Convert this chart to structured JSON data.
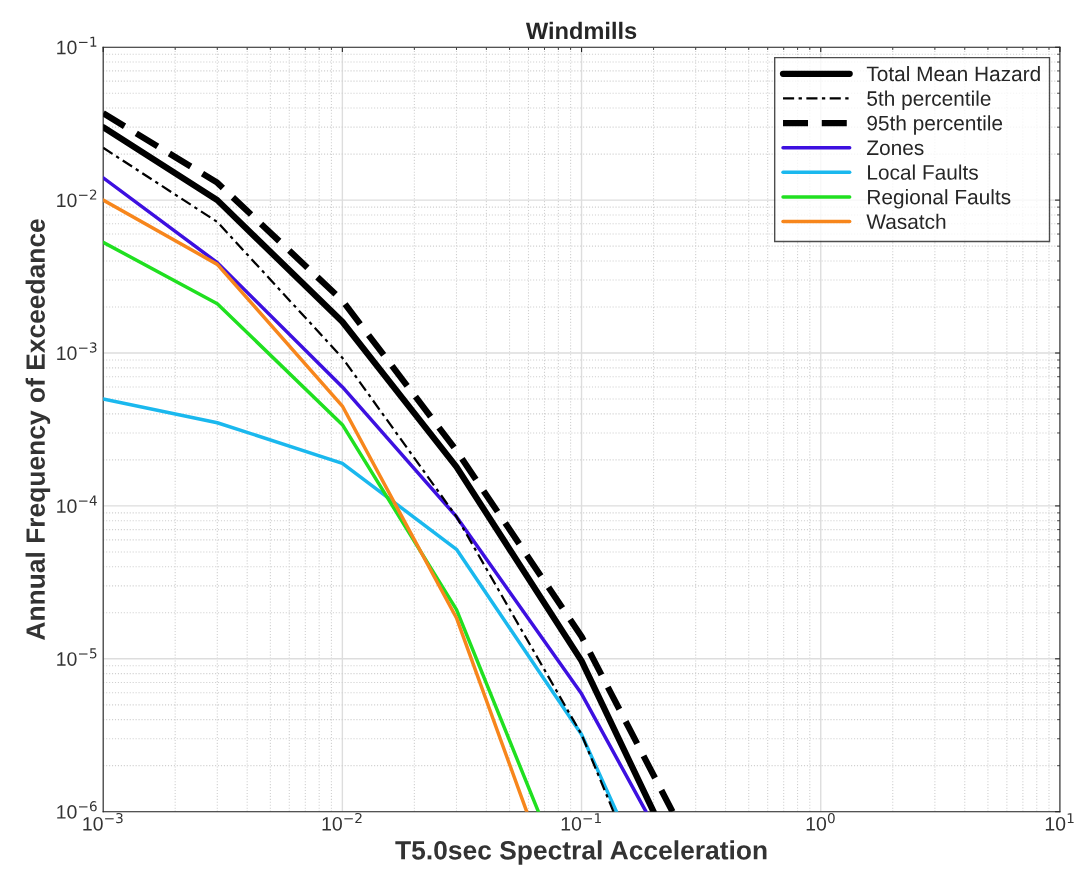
{
  "chart_data": {
    "type": "line",
    "title": "Windmills",
    "xlabel": "T5.0sec Spectral Acceleration",
    "ylabel": "Annual Frequency of Exceedance",
    "log": "xy",
    "grid": true,
    "legend": "top right",
    "xlim": [
      0.001,
      10
    ],
    "ylim": [
      1e-06,
      0.1
    ],
    "xticks": [
      {
        "value": 0.001,
        "label": "10$^{−3}$"
      },
      {
        "value": 0.01,
        "label": "10$^{−2}$"
      },
      {
        "value": 0.1,
        "label": "10$^{−1}$"
      },
      {
        "value": 1,
        "label": "10$^{0}$"
      },
      {
        "value": 10,
        "label": "10$^{1}$"
      }
    ],
    "yticks": [
      {
        "value": 1e-06,
        "label": "10$^{−6}$"
      },
      {
        "value": 1e-05,
        "label": "10$^{−5}$"
      },
      {
        "value": 0.0001,
        "label": "10$^{−4}$"
      },
      {
        "value": 0.001,
        "label": "10$^{−3}$"
      },
      {
        "value": 0.01,
        "label": "10$^{−2}$"
      },
      {
        "value": 0.1,
        "label": "10$^{−1}$"
      }
    ],
    "series": [
      {
        "name": "Total Mean Hazard",
        "color": "#000000",
        "line_style": "solid",
        "x": [
          0.001,
          0.003,
          0.01,
          0.03,
          0.1,
          0.2
        ],
        "values": [
          0.03,
          0.01,
          0.0016,
          0.00018,
          9.7e-06,
          1e-06
        ]
      },
      {
        "name": "5th percentile",
        "color": "#000000",
        "line_style": "dashdot",
        "x": [
          0.001,
          0.003,
          0.01,
          0.03,
          0.1,
          0.136
        ],
        "values": [
          0.022,
          0.0072,
          0.00093,
          8.5e-05,
          3.2e-06,
          1e-06
        ]
      },
      {
        "name": "95th percentile",
        "color": "#000000",
        "line_style": "dashed",
        "x": [
          0.001,
          0.003,
          0.01,
          0.03,
          0.1,
          0.24
        ],
        "values": [
          0.037,
          0.013,
          0.0022,
          0.00023,
          1.4e-05,
          1e-06
        ]
      },
      {
        "name": "Zones",
        "color": "#3d10e0",
        "line_style": "solid",
        "x": [
          0.001,
          0.003,
          0.01,
          0.03,
          0.1,
          0.186
        ],
        "values": [
          0.014,
          0.0039,
          0.0006,
          8.5e-05,
          5.9e-06,
          1e-06
        ]
      },
      {
        "name": "Local Faults",
        "color": "#1ab8ee",
        "line_style": "solid",
        "x": [
          0.001,
          0.003,
          0.01,
          0.03,
          0.1,
          0.14
        ],
        "values": [
          0.0005,
          0.00035,
          0.00019,
          5.2e-05,
          3.2e-06,
          1e-06
        ]
      },
      {
        "name": "Regional Faults",
        "color": "#20e020",
        "line_style": "solid",
        "x": [
          0.001,
          0.003,
          0.01,
          0.03,
          0.066
        ],
        "values": [
          0.0053,
          0.0021,
          0.00034,
          2.1e-05,
          1e-06
        ]
      },
      {
        "name": "Wasatch",
        "color": "#f7861c",
        "line_style": "solid",
        "x": [
          0.001,
          0.003,
          0.01,
          0.03,
          0.059
        ],
        "values": [
          0.01,
          0.0038,
          0.00045,
          1.85e-05,
          1e-06
        ]
      }
    ]
  }
}
